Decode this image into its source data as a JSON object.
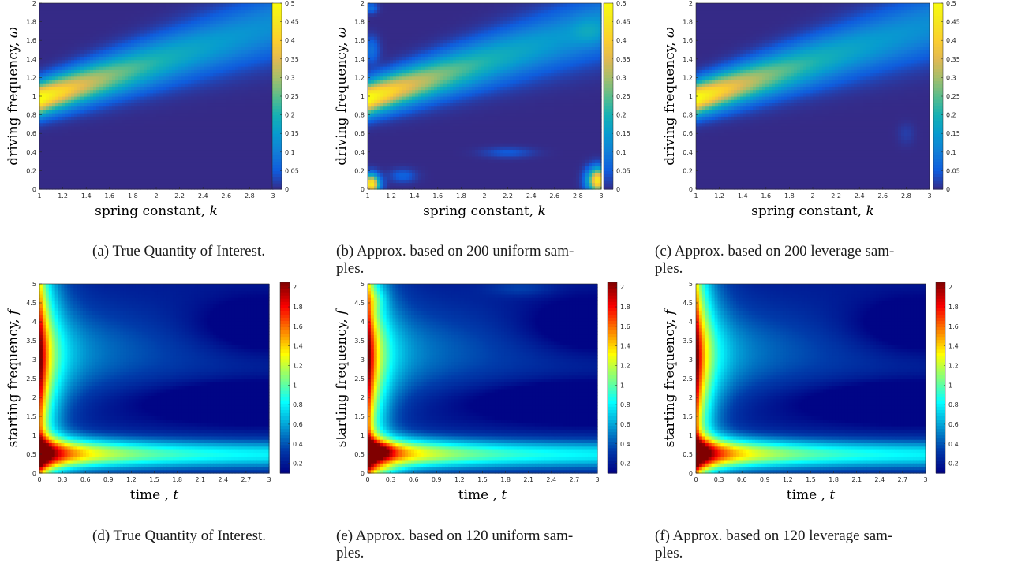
{
  "chart_data": [
    {
      "type": "heatmap",
      "label": "(a)",
      "field": "qoi1",
      "variant": "true",
      "xlabel": "spring constant, ",
      "xvar": "k",
      "ylabel": "driving frequency, ",
      "yvar": "ω",
      "xlim": [
        1,
        3
      ],
      "ylim": [
        0,
        2
      ],
      "xticks": [
        "1",
        "1.2",
        "1.4",
        "1.6",
        "1.8",
        "2",
        "2.2",
        "2.4",
        "2.6",
        "2.8",
        "3"
      ],
      "yticks": [
        "0",
        "0.2",
        "0.4",
        "0.6",
        "0.8",
        "1",
        "1.2",
        "1.4",
        "1.6",
        "1.8",
        "2"
      ],
      "colorbar": {
        "min": 0,
        "max": 0.5,
        "ticks": [
          "0",
          "0.05",
          "0.1",
          "0.15",
          "0.2",
          "0.25",
          "0.3",
          "0.35",
          "0.4",
          "0.45",
          "0.5"
        ],
        "colormap": "parula"
      },
      "caption": [
        "(a) True Quantity of Interest."
      ]
    },
    {
      "type": "heatmap",
      "label": "(b)",
      "field": "qoi1",
      "variant": "uniform",
      "xlabel": "spring constant, ",
      "xvar": "k",
      "ylabel": "driving frequency, ",
      "yvar": "ω",
      "xlim": [
        1,
        3
      ],
      "ylim": [
        0,
        2
      ],
      "xticks": [
        "1",
        "1.2",
        "1.4",
        "1.6",
        "1.8",
        "2",
        "2.2",
        "2.4",
        "2.6",
        "2.8",
        "3"
      ],
      "yticks": [
        "0",
        "0.2",
        "0.4",
        "0.6",
        "0.8",
        "1",
        "1.2",
        "1.4",
        "1.6",
        "1.8",
        "2"
      ],
      "colorbar": {
        "min": 0,
        "max": 0.5,
        "ticks": [
          "0",
          "0.05",
          "0.1",
          "0.15",
          "0.2",
          "0.25",
          "0.3",
          "0.35",
          "0.4",
          "0.45",
          "0.5"
        ],
        "colormap": "parula"
      },
      "caption": [
        "(b) Approx. based on 200 uniform sam-",
        "ples."
      ]
    },
    {
      "type": "heatmap",
      "label": "(c)",
      "field": "qoi1",
      "variant": "leverage",
      "xlabel": "spring constant, ",
      "xvar": "k",
      "ylabel": "driving frequency, ",
      "yvar": "ω",
      "xlim": [
        1,
        3
      ],
      "ylim": [
        0,
        2
      ],
      "xticks": [
        "1",
        "1.2",
        "1.4",
        "1.6",
        "1.8",
        "2",
        "2.2",
        "2.4",
        "2.6",
        "2.8",
        "3"
      ],
      "yticks": [
        "0",
        "0.2",
        "0.4",
        "0.6",
        "0.8",
        "1",
        "1.2",
        "1.4",
        "1.6",
        "1.8",
        "2"
      ],
      "colorbar": {
        "min": 0,
        "max": 0.5,
        "ticks": [
          "0",
          "0.05",
          "0.1",
          "0.15",
          "0.2",
          "0.25",
          "0.3",
          "0.35",
          "0.4",
          "0.45",
          "0.5"
        ],
        "colormap": "parula"
      },
      "caption": [
        "(c) Approx. based on 200 leverage sam-",
        "ples."
      ]
    },
    {
      "type": "heatmap",
      "label": "(d)",
      "field": "qoi2",
      "variant": "true",
      "xlabel": "time , ",
      "xvar": "t",
      "ylabel": "starting frequency, ",
      "yvar": "f",
      "xlim": [
        0,
        3
      ],
      "ylim": [
        0,
        5
      ],
      "xticks": [
        "0",
        "0.3",
        "0.6",
        "0.9",
        "1.2",
        "1.5",
        "1.8",
        "2.1",
        "2.4",
        "2.7",
        "3"
      ],
      "yticks": [
        "0",
        "0.5",
        "1",
        "1.5",
        "2",
        "2.5",
        "3",
        "3.5",
        "4",
        "4.5",
        "5"
      ],
      "colorbar": {
        "min": 0.1,
        "max": 2.05,
        "ticks": [
          "0.2",
          "0.4",
          "0.6",
          "0.8",
          "1",
          "1.2",
          "1.4",
          "1.6",
          "1.8",
          "2"
        ],
        "colormap": "jet"
      },
      "caption": [
        "(d) True Quantity of Interest."
      ]
    },
    {
      "type": "heatmap",
      "label": "(e)",
      "field": "qoi2",
      "variant": "uniform",
      "xlabel": "time , ",
      "xvar": "t",
      "ylabel": "starting frequency, ",
      "yvar": "f",
      "xlim": [
        0,
        3
      ],
      "ylim": [
        0,
        5
      ],
      "xticks": [
        "0",
        "0.3",
        "0.6",
        "0.9",
        "1.2",
        "1.5",
        "1.8",
        "2.1",
        "2.4",
        "2.7",
        "3"
      ],
      "yticks": [
        "0",
        "0.5",
        "1",
        "1.5",
        "2",
        "2.5",
        "3",
        "3.5",
        "4",
        "4.5",
        "5"
      ],
      "colorbar": {
        "min": 0.1,
        "max": 2.05,
        "ticks": [
          "0.2",
          "0.4",
          "0.6",
          "0.8",
          "1",
          "1.2",
          "1.4",
          "1.6",
          "1.8",
          "2"
        ],
        "colormap": "jet"
      },
      "caption": [
        "(e) Approx. based on 120 uniform sam-",
        "ples."
      ]
    },
    {
      "type": "heatmap",
      "label": "(f)",
      "field": "qoi2",
      "variant": "leverage",
      "xlabel": "time , ",
      "xvar": "t",
      "ylabel": "starting frequency, ",
      "yvar": "f",
      "xlim": [
        0,
        3
      ],
      "ylim": [
        0,
        5
      ],
      "xticks": [
        "0",
        "0.3",
        "0.6",
        "0.9",
        "1.2",
        "1.5",
        "1.8",
        "2.1",
        "2.4",
        "2.7",
        "3"
      ],
      "yticks": [
        "0",
        "0.5",
        "1",
        "1.5",
        "2",
        "2.5",
        "3",
        "3.5",
        "4",
        "4.5",
        "5"
      ],
      "colorbar": {
        "min": 0.1,
        "max": 2.05,
        "ticks": [
          "0.2",
          "0.4",
          "0.6",
          "0.8",
          "1",
          "1.2",
          "1.4",
          "1.6",
          "1.8",
          "2"
        ],
        "colormap": "jet"
      },
      "caption": [
        "(f) Approx. based on 120 leverage sam-",
        "ples."
      ]
    }
  ]
}
